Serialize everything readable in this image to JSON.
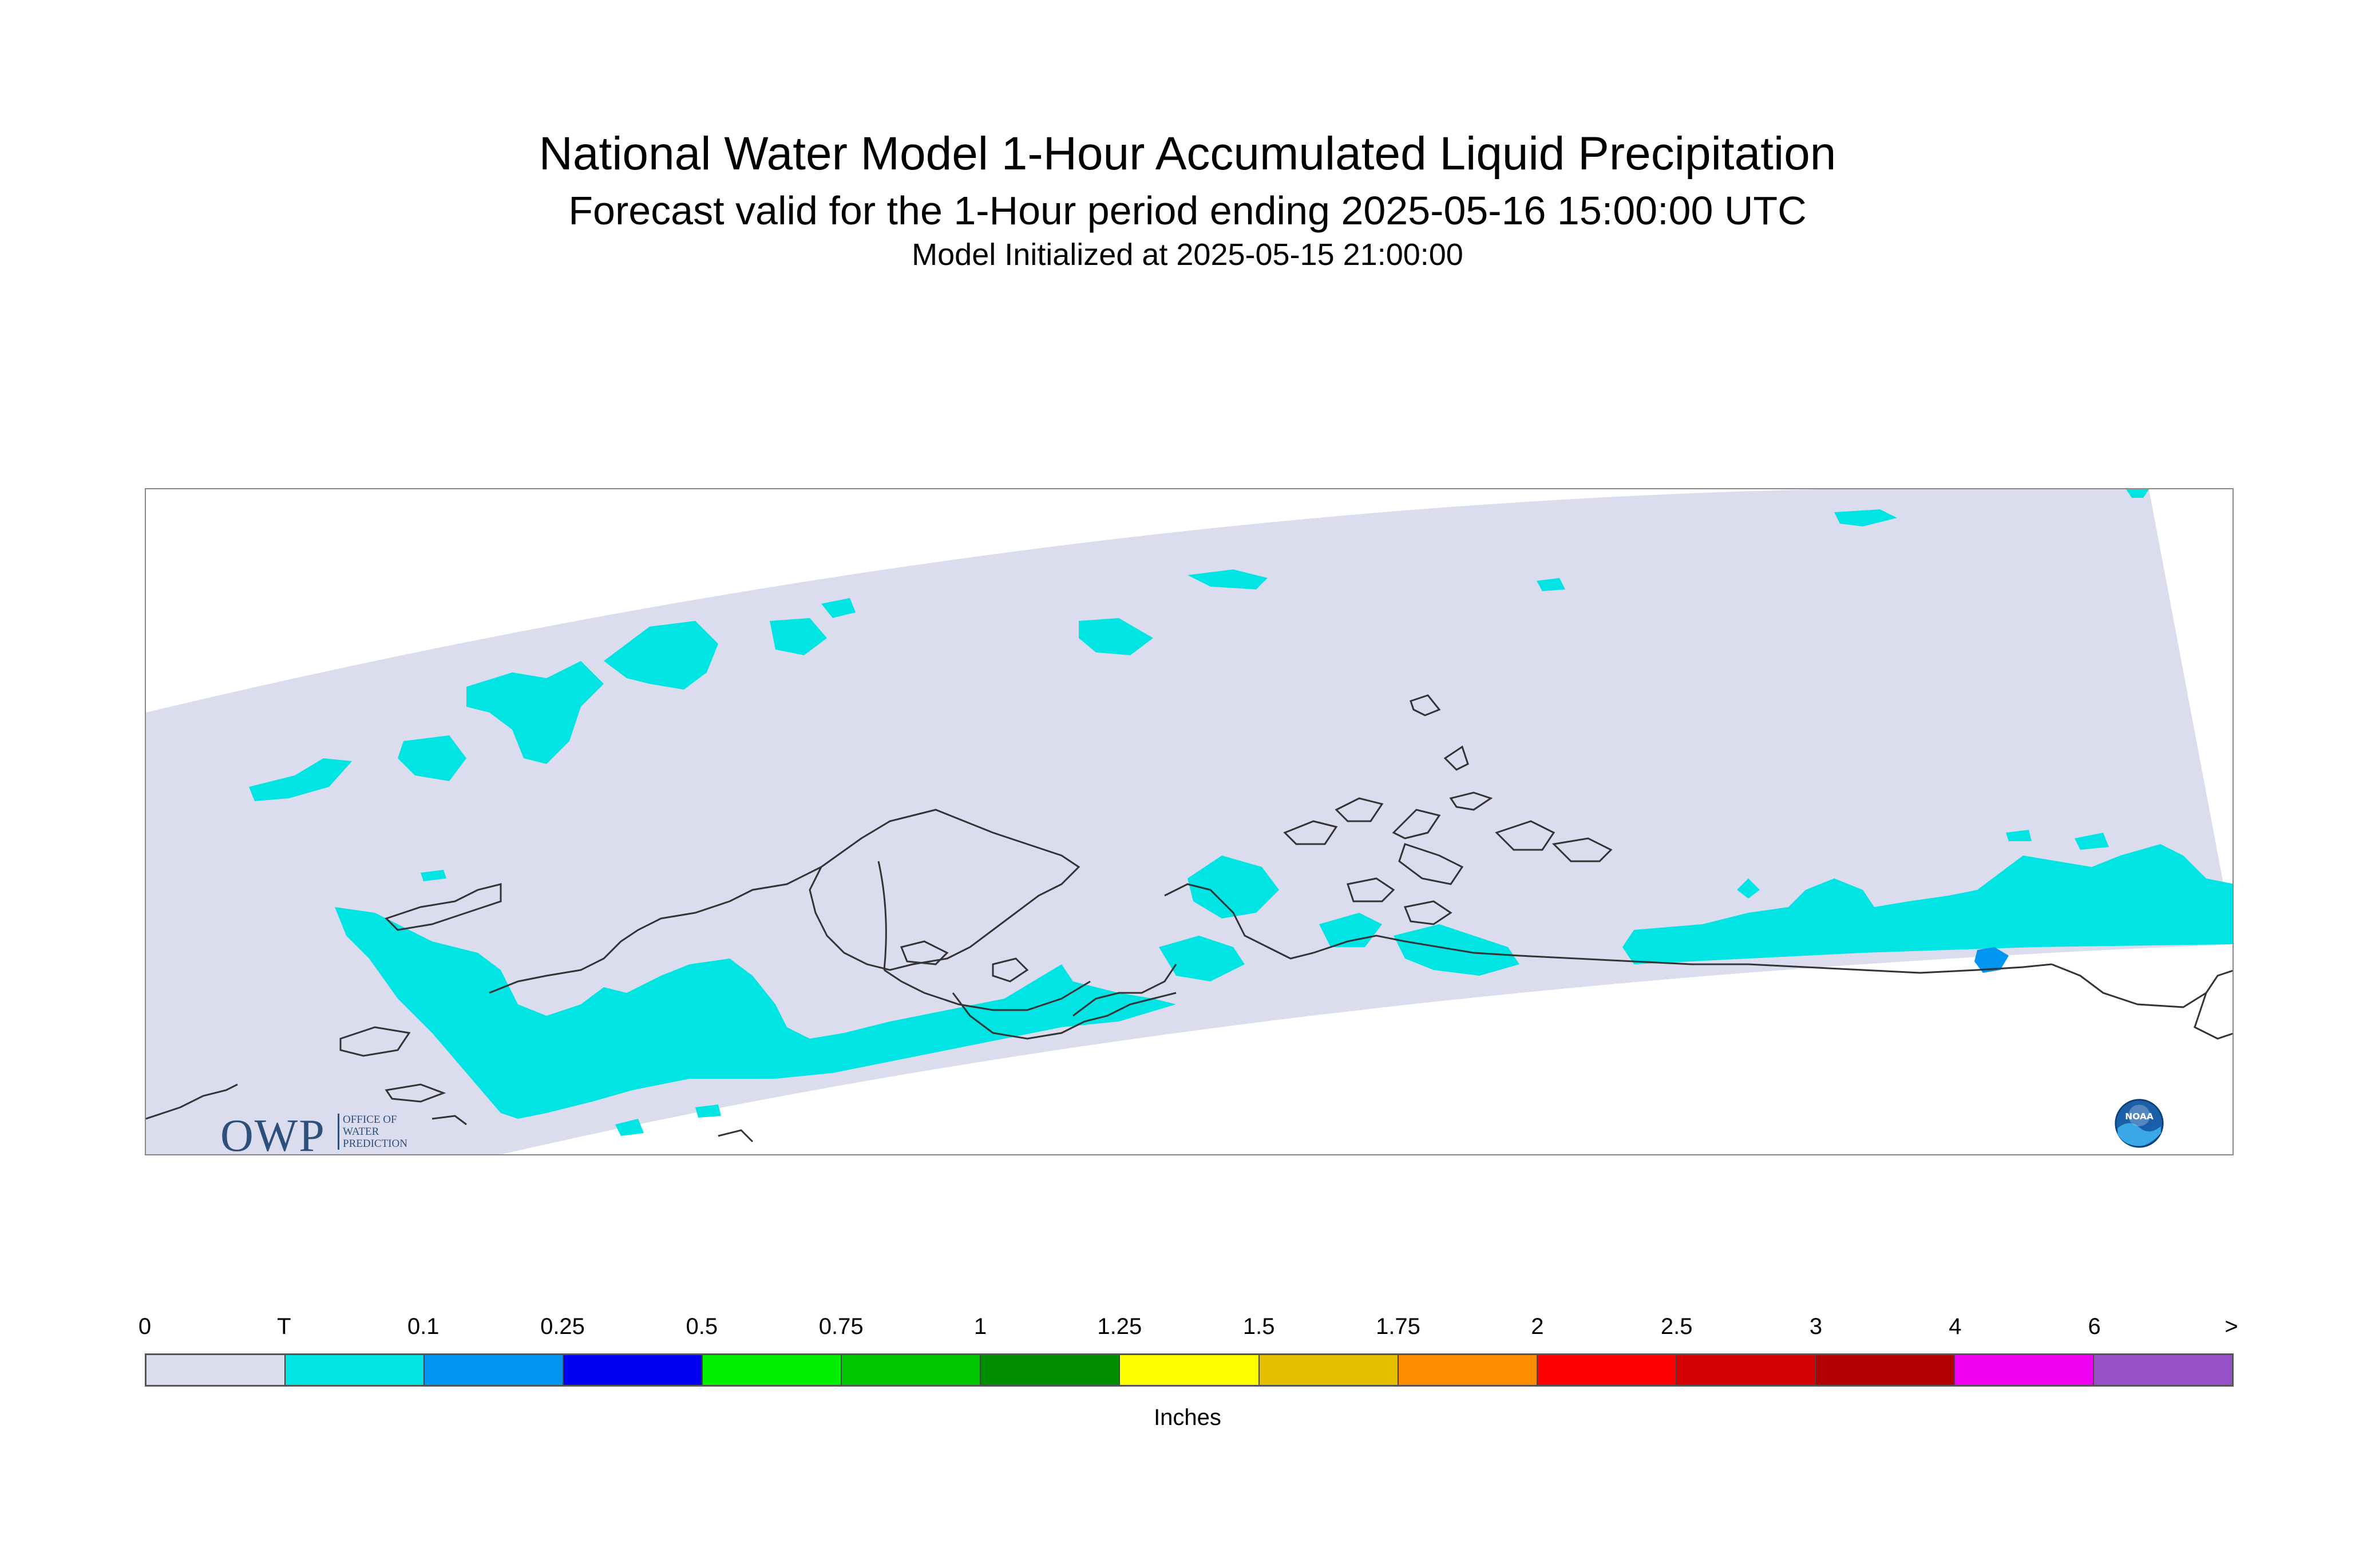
{
  "title": {
    "line1": "National Water Model 1-Hour Accumulated Liquid Precipitation",
    "line2": "Forecast valid for the 1-Hour period ending 2025-05-16 15:00:00 UTC",
    "line3": "Model Initialized at 2025-05-15 21:00:00"
  },
  "map": {
    "region": "Alaska",
    "domain_fill_color": "#dcdcef",
    "trace_color": "#00e4e4",
    "light_color": "#0095f0",
    "coastline_color": "#333333"
  },
  "logos": {
    "owp_text": "OWP",
    "owp_sub_lines": [
      "OFFICE OF",
      "WATER",
      "PREDICTION"
    ],
    "noaa_text": "NOAA"
  },
  "colorbar": {
    "labels": [
      "0",
      "T",
      "0.1",
      "0.25",
      "0.5",
      "0.75",
      "1",
      "1.25",
      "1.5",
      "1.75",
      "2",
      "2.5",
      "3",
      "4",
      "6",
      ">"
    ],
    "colors": [
      "#dcdcef",
      "#00e4e4",
      "#0095f0",
      "#0000f0",
      "#00f000",
      "#00c800",
      "#008c00",
      "#ffff00",
      "#e6be00",
      "#ff8c00",
      "#ff0000",
      "#d20000",
      "#b40000",
      "#f000f0",
      "#9650c8"
    ],
    "units": "Inches"
  }
}
